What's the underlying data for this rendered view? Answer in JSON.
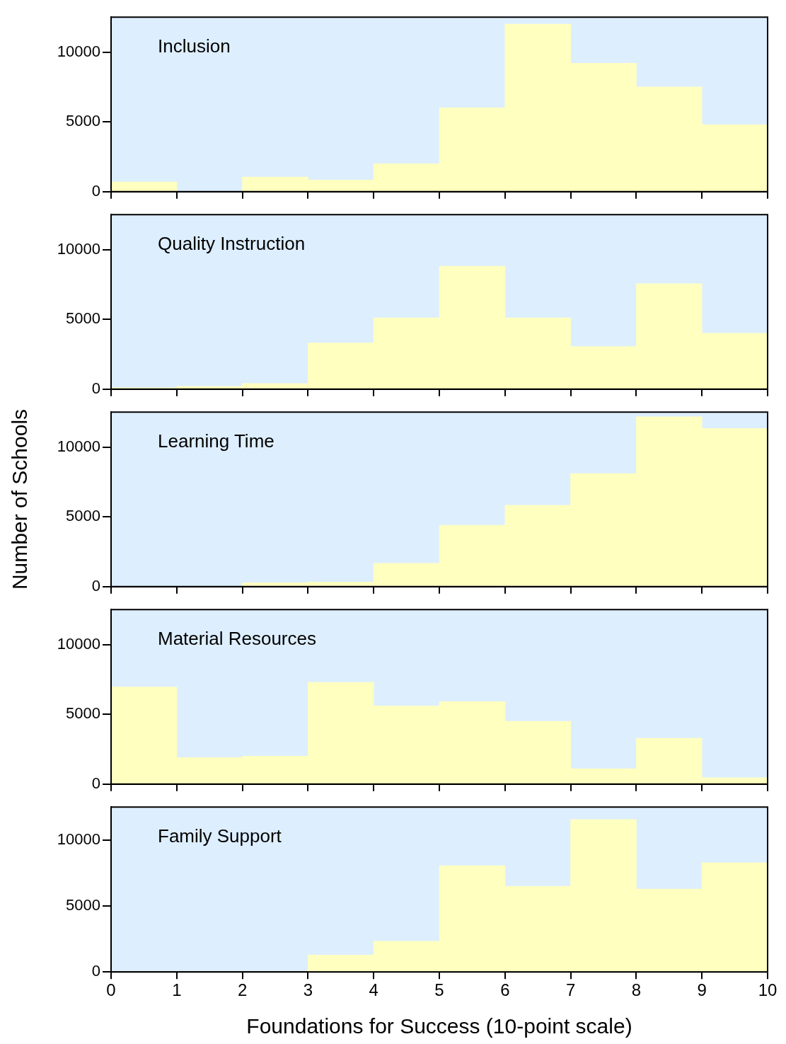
{
  "chart_data": [
    {
      "type": "histogram",
      "title": "Inclusion",
      "bins": [
        0,
        1,
        2,
        3,
        4,
        5,
        6,
        7,
        8,
        9,
        10
      ],
      "values": [
        700,
        0,
        1050,
        830,
        2000,
        6000,
        12000,
        9200,
        7500,
        4800
      ],
      "color": "#ffffc0",
      "xlim": [
        0,
        10
      ],
      "xticks": [
        0,
        1,
        2,
        3,
        4,
        5,
        6,
        7,
        8,
        9,
        10
      ],
      "ylim": [
        0,
        12500
      ],
      "yticks": [
        0,
        5000,
        10000
      ],
      "tick_labels": "y",
      "grid": false
    },
    {
      "type": "histogram",
      "title": "Quality Instruction",
      "bins": [
        0,
        1,
        2,
        3,
        4,
        5,
        6,
        7,
        8,
        9,
        10
      ],
      "values": [
        100,
        200,
        400,
        3300,
        5100,
        8800,
        5100,
        3050,
        7550,
        4000
      ],
      "color": "#ffffc0",
      "xlim": [
        0,
        10
      ],
      "xticks": [
        0,
        1,
        2,
        3,
        4,
        5,
        6,
        7,
        8,
        9,
        10
      ],
      "ylim": [
        0,
        12500
      ],
      "yticks": [
        0,
        5000,
        10000
      ],
      "tick_labels": "y",
      "grid": false
    },
    {
      "type": "histogram",
      "title": "Learning Time",
      "ylabel": "Number of Schools",
      "bins": [
        0,
        1,
        2,
        3,
        4,
        5,
        6,
        7,
        8,
        9,
        10
      ],
      "values": [
        0,
        0,
        280,
        330,
        1670,
        4400,
        5830,
        8100,
        12170,
        11330
      ],
      "color": "#ffffc0",
      "xlim": [
        0,
        10
      ],
      "xticks": [
        0,
        1,
        2,
        3,
        4,
        5,
        6,
        7,
        8,
        9,
        10
      ],
      "ylim": [
        0,
        12500
      ],
      "yticks": [
        0,
        5000,
        10000
      ],
      "tick_labels": "y",
      "grid": false
    },
    {
      "type": "histogram",
      "title": "Material Resources",
      "bins": [
        0,
        1,
        2,
        3,
        4,
        5,
        6,
        7,
        8,
        9,
        10
      ],
      "values": [
        6950,
        1900,
        2000,
        7280,
        5600,
        5900,
        4500,
        1100,
        3280,
        450
      ],
      "color": "#ffffc0",
      "xlim": [
        0,
        10
      ],
      "xticks": [
        0,
        1,
        2,
        3,
        4,
        5,
        6,
        7,
        8,
        9,
        10
      ],
      "ylim": [
        0,
        12500
      ],
      "yticks": [
        0,
        5000,
        10000
      ],
      "tick_labels": "y",
      "grid": false
    },
    {
      "type": "histogram",
      "title": "Family Support",
      "xlabel": "Foundations for Success (10-point scale)",
      "bins": [
        0,
        1,
        2,
        3,
        4,
        5,
        6,
        7,
        8,
        9,
        10
      ],
      "values": [
        0,
        0,
        0,
        1280,
        2330,
        8060,
        6500,
        11550,
        6280,
        8280
      ],
      "color": "#ffffc0",
      "xlim": [
        0,
        10
      ],
      "xticks": [
        0,
        1,
        2,
        3,
        4,
        5,
        6,
        7,
        8,
        9,
        10
      ],
      "ylim": [
        0,
        12500
      ],
      "yticks": [
        0,
        5000,
        10000
      ],
      "grid": false
    }
  ]
}
